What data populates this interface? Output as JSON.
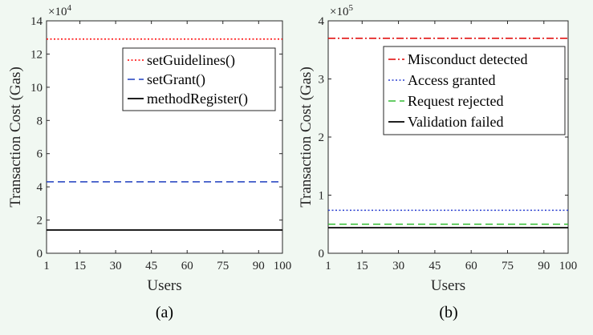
{
  "chart_data": [
    {
      "type": "line",
      "panel": "a",
      "caption": "(a)",
      "xlabel": "Users",
      "ylabel": "Transaction Cost (Gas)",
      "y_exponent_base": "×10",
      "y_exponent_power": "4",
      "xlim": [
        1,
        100
      ],
      "ylim": [
        0,
        14
      ],
      "x_ticks": [
        1,
        15,
        30,
        45,
        60,
        75,
        90,
        100
      ],
      "y_ticks": [
        0,
        2,
        4,
        6,
        8,
        10,
        12,
        14
      ],
      "legend_position": "top-right",
      "series": [
        {
          "name": "setGuidelines()",
          "color": "#ff0000",
          "style": "dotted",
          "x": [
            1,
            100
          ],
          "y": [
            12.9,
            12.9
          ]
        },
        {
          "name": "setGrant()",
          "color": "#1f3fbf",
          "style": "dashed",
          "x": [
            1,
            100
          ],
          "y": [
            4.3,
            4.3
          ]
        },
        {
          "name": "methodRegister()",
          "color": "#000000",
          "style": "solid",
          "x": [
            1,
            100
          ],
          "y": [
            1.4,
            1.4
          ]
        }
      ]
    },
    {
      "type": "line",
      "panel": "b",
      "caption": "(b)",
      "xlabel": "Users",
      "ylabel": "Transaction Cost (Gas)",
      "y_exponent_base": "×10",
      "y_exponent_power": "5",
      "xlim": [
        1,
        100
      ],
      "ylim": [
        0,
        4
      ],
      "x_ticks": [
        1,
        15,
        30,
        45,
        60,
        75,
        90,
        100
      ],
      "y_ticks": [
        0,
        1,
        2,
        3,
        4
      ],
      "legend_position": "top-right",
      "series": [
        {
          "name": "Misconduct detected",
          "color": "#e00000",
          "style": "dashdot",
          "x": [
            1,
            100
          ],
          "y": [
            3.7,
            3.7
          ]
        },
        {
          "name": "Access granted",
          "color": "#2a3fd0",
          "style": "dotted",
          "x": [
            1,
            100
          ],
          "y": [
            0.74,
            0.74
          ]
        },
        {
          "name": "Request rejected",
          "color": "#33bb33",
          "style": "dashed",
          "x": [
            1,
            100
          ],
          "y": [
            0.5,
            0.5
          ]
        },
        {
          "name": "Validation failed",
          "color": "#000000",
          "style": "solid",
          "x": [
            1,
            100
          ],
          "y": [
            0.44,
            0.44
          ]
        }
      ]
    }
  ]
}
